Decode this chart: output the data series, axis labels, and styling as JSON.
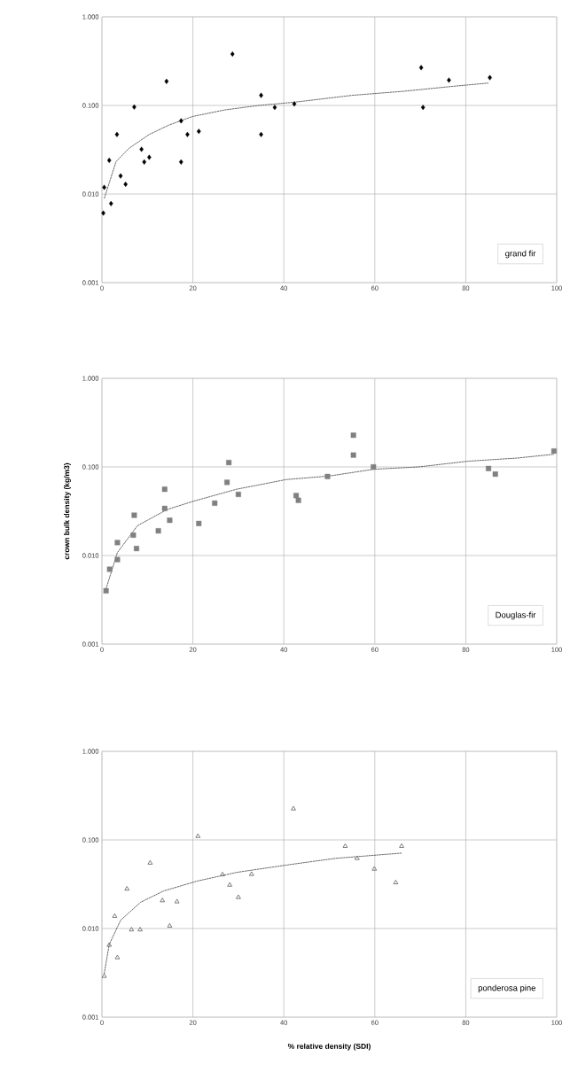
{
  "chart_data": [
    {
      "type": "scatter",
      "log": "y",
      "grid": true,
      "legend": "bottom right",
      "xlim": [
        0,
        100
      ],
      "xticks": [
        0,
        20,
        40,
        60,
        80,
        100
      ],
      "ylim": [
        0.001,
        1
      ],
      "yticks": [
        {
          "value": 0.001,
          "label": "0.001"
        },
        {
          "value": 0.01,
          "label": "0.010"
        },
        {
          "value": 0.1,
          "label": "0.100"
        },
        {
          "value": 1,
          "label": "1.000"
        }
      ],
      "series": [
        {
          "name": "grand fir",
          "color": "#000000",
          "marker": "diamond",
          "x": [
            0.3,
            0.5,
            1.6,
            2,
            3.3,
            4.1,
            5.2,
            7.1,
            8.7,
            9.3,
            10.4,
            14.2,
            17.4,
            17.4,
            18.8,
            21.3,
            28.7,
            35,
            35,
            38,
            42.3,
            70.2,
            70.6,
            76.3,
            85.3
          ],
          "values": [
            0.0061,
            0.0119,
            0.024,
            0.0078,
            0.047,
            0.016,
            0.0129,
            0.096,
            0.032,
            0.023,
            0.026,
            0.187,
            0.067,
            0.023,
            0.047,
            0.051,
            0.38,
            0.13,
            0.047,
            0.095,
            0.104,
            0.267,
            0.095,
            0.193,
            0.206
          ]
        },
        {
          "type": "line",
          "color": "#404040",
          "line_style": "dashed",
          "marker": "none",
          "x": [
            0.5,
            3.1,
            6,
            10.4,
            14.7,
            19.9,
            27,
            34.5,
            42.5,
            55,
            66,
            77,
            85
          ],
          "values": [
            0.0089,
            0.0232,
            0.033,
            0.047,
            0.06,
            0.075,
            0.089,
            0.1,
            0.109,
            0.13,
            0.144,
            0.164,
            0.179
          ]
        }
      ]
    },
    {
      "type": "scatter",
      "log": "y",
      "grid": true,
      "legend": "bottom right",
      "ylabel": "crown bulk density (kg/m3)",
      "xlim": [
        0,
        100
      ],
      "xticks": [
        0,
        20,
        40,
        60,
        80,
        100
      ],
      "ylim": [
        0.001,
        1
      ],
      "yticks": [
        {
          "value": 0.001,
          "label": "0.001"
        },
        {
          "value": 0.01,
          "label": "0.010"
        },
        {
          "value": 0.1,
          "label": "0.100"
        },
        {
          "value": 1,
          "label": "1.000"
        }
      ],
      "series": [
        {
          "name": "Douglas-fir",
          "color": "#808080",
          "marker": "square",
          "x": [
            0.9,
            1.7,
            3.4,
            3.4,
            6.9,
            7.1,
            7.6,
            12.4,
            13.8,
            13.8,
            14.9,
            21.3,
            24.8,
            27.5,
            27.9,
            30,
            42.7,
            43.2,
            49.6,
            55.3,
            55.3,
            59.7,
            85,
            86.5,
            99.4
          ],
          "values": [
            0.004,
            0.007,
            0.009,
            0.014,
            0.017,
            0.0285,
            0.012,
            0.019,
            0.056,
            0.034,
            0.025,
            0.023,
            0.039,
            0.067,
            0.112,
            0.049,
            0.0475,
            0.042,
            0.078,
            0.228,
            0.136,
            0.1,
            0.096,
            0.083,
            0.151
          ]
        },
        {
          "type": "line",
          "color": "#404040",
          "line_style": "dashed",
          "marker": "none",
          "x": [
            0.9,
            3.4,
            7.8,
            14.3,
            20.1,
            29.6,
            40.5,
            50,
            59.7,
            69.6,
            80.5,
            91.4,
            99.4
          ],
          "values": [
            0.0042,
            0.0108,
            0.0217,
            0.033,
            0.041,
            0.056,
            0.072,
            0.079,
            0.094,
            0.1,
            0.116,
            0.126,
            0.139
          ]
        }
      ]
    },
    {
      "type": "scatter",
      "log": "y",
      "grid": true,
      "legend": "bottom right",
      "xlabel": "% relative density (SDI)",
      "xlim": [
        0,
        100
      ],
      "xticks": [
        0,
        20,
        40,
        60,
        80,
        100
      ],
      "ylim": [
        0.001,
        1
      ],
      "yticks": [
        {
          "value": 0.001,
          "label": "0.001"
        },
        {
          "value": 0.01,
          "label": "0.010"
        },
        {
          "value": 0.1,
          "label": "0.100"
        },
        {
          "value": 1,
          "label": "1.000"
        }
      ],
      "series": [
        {
          "name": "ponderosa pine",
          "color": "#6e6e6e",
          "marker": "triangle",
          "x": [
            0.5,
            1.6,
            3.4,
            2.8,
            5.5,
            6.5,
            8.4,
            10.6,
            13.3,
            14.9,
            16.5,
            21.1,
            26.5,
            28.1,
            30,
            32.9,
            42.1,
            53.5,
            56.1,
            59.9,
            64.6,
            65.9
          ],
          "values": [
            0.0029,
            0.0065,
            0.0047,
            0.0138,
            0.028,
            0.0097,
            0.0097,
            0.055,
            0.0207,
            0.0107,
            0.0201,
            0.11,
            0.0406,
            0.031,
            0.0225,
            0.041,
            0.225,
            0.085,
            0.062,
            0.047,
            0.033,
            0.085
          ]
        },
        {
          "type": "line",
          "color": "#404040",
          "line_style": "dashed",
          "marker": "none",
          "x": [
            0.5,
            1.6,
            4.1,
            8.5,
            13.6,
            20.9,
            29.6,
            40.5,
            51.4,
            65.9
          ],
          "values": [
            0.0031,
            0.0066,
            0.0124,
            0.0198,
            0.0266,
            0.0343,
            0.043,
            0.052,
            0.062,
            0.071
          ]
        }
      ]
    }
  ]
}
